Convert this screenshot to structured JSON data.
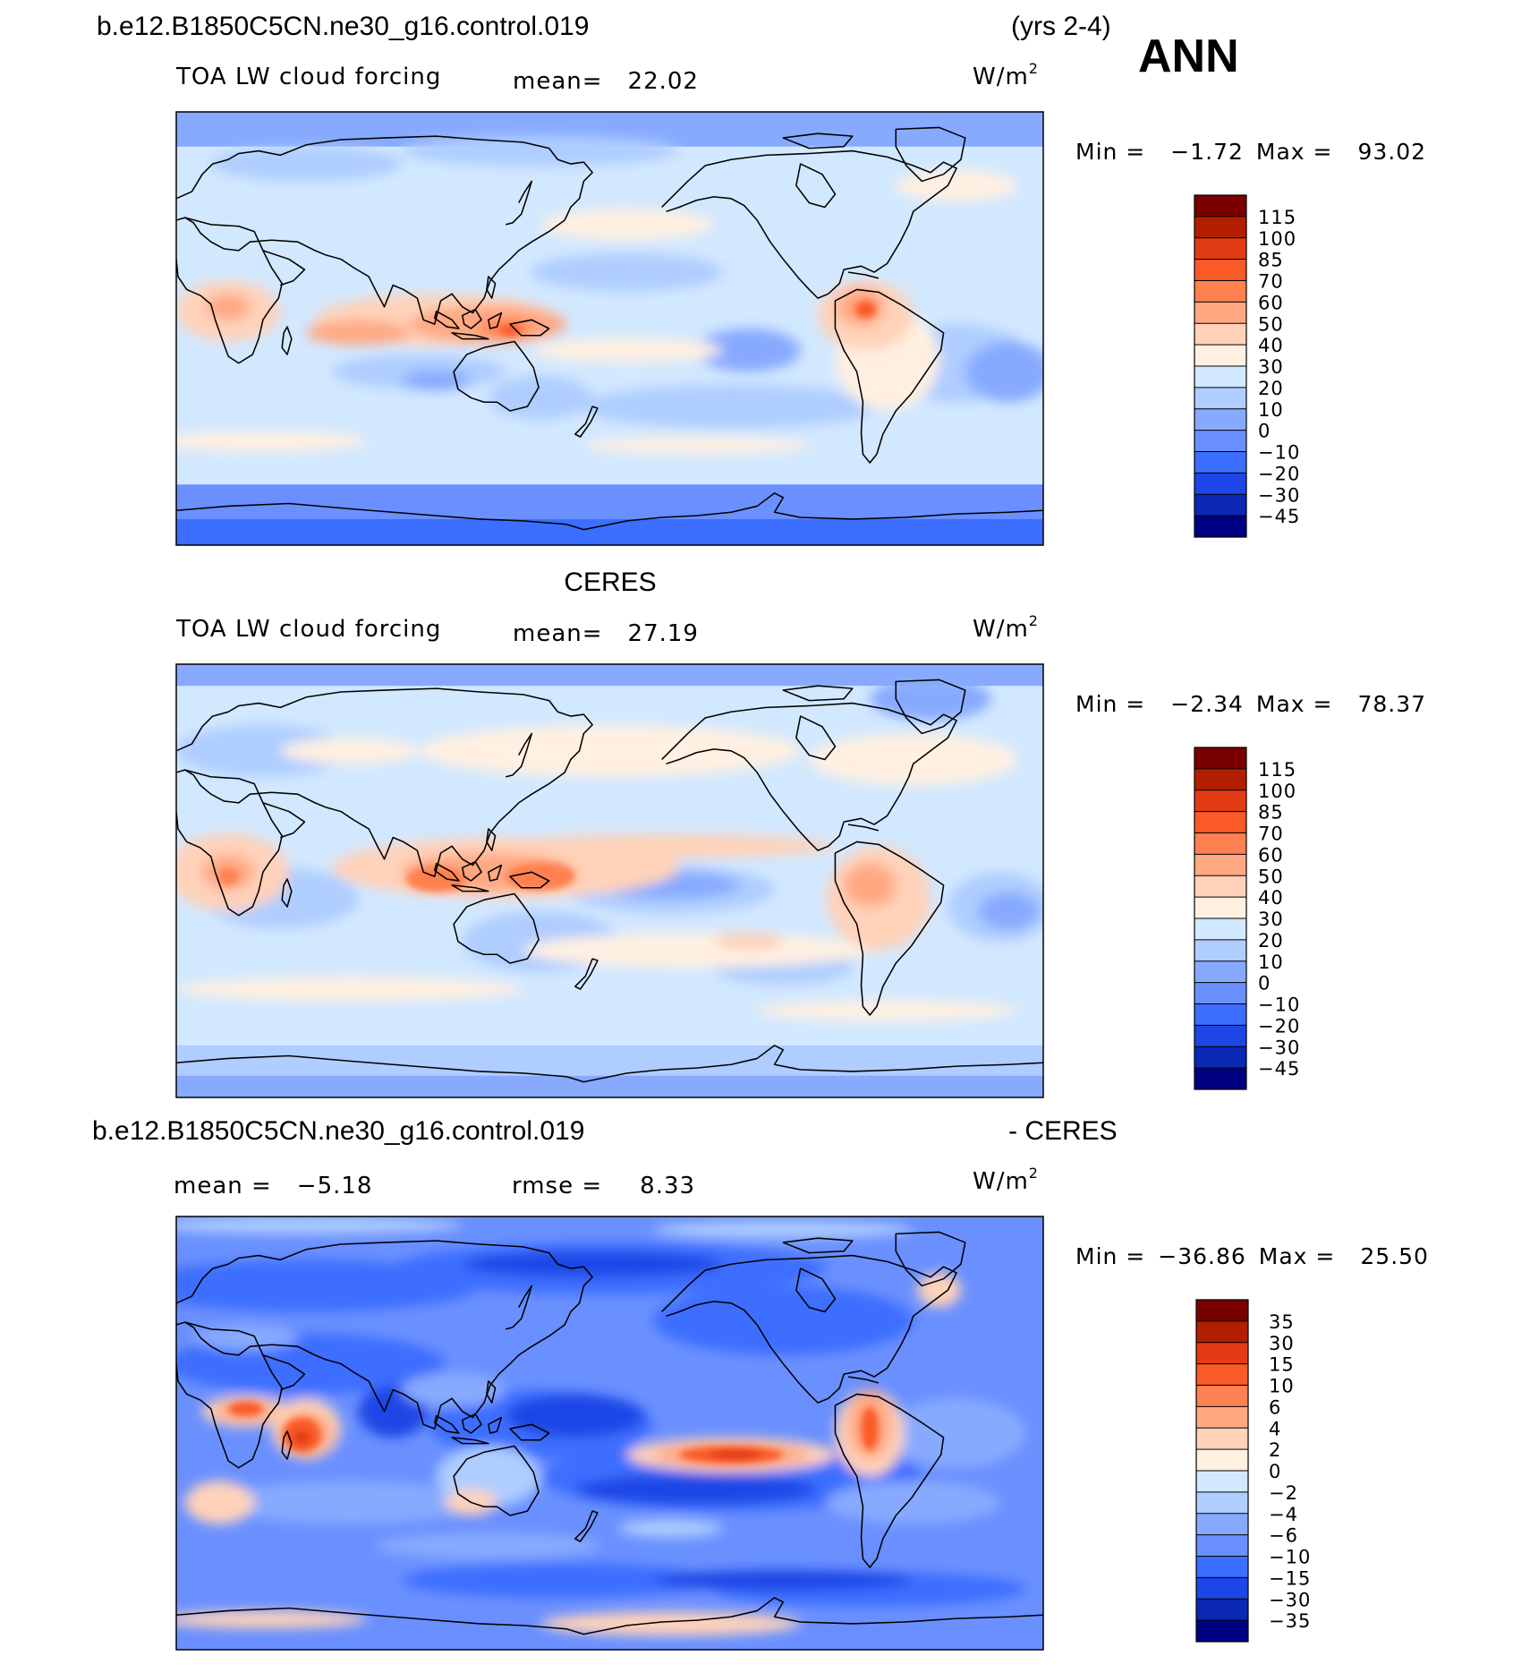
{
  "header": {
    "case_name": "b.e12.B1850C5CN.ne30_g16.control.019",
    "years": "(yrs 2-4)",
    "season": "ANN"
  },
  "panels": [
    {
      "id": "model",
      "title": "",
      "variable": "TOA LW cloud forcing",
      "mean_label": "mean=",
      "mean_value": "22.02",
      "units_base": "W/m",
      "units_exp": "2",
      "min_label": "Min =",
      "min_value": "−1.72",
      "max_label": "Max =",
      "max_value": "93.02",
      "colorbar_labels": [
        "115",
        "100",
        "85",
        "70",
        "60",
        "50",
        "40",
        "30",
        "20",
        "10",
        "0",
        "−10",
        "−20",
        "−30",
        "−45"
      ],
      "colorbar_colors": [
        "#7a0000",
        "#b41e00",
        "#e23c14",
        "#fa5a28",
        "#ff8050",
        "#ffa882",
        "#ffd2b9",
        "#fff0e1",
        "#d2e8ff",
        "#afcdff",
        "#87aaff",
        "#6a90ff",
        "#3c6eff",
        "#1e46e6",
        "#0a28b4",
        "#000082"
      ]
    },
    {
      "id": "obs",
      "title": "CERES",
      "variable": "TOA LW cloud forcing",
      "mean_label": "mean=",
      "mean_value": "27.19",
      "units_base": "W/m",
      "units_exp": "2",
      "min_label": "Min =",
      "min_value": "−2.34",
      "max_label": "Max =",
      "max_value": "78.37",
      "colorbar_labels": [
        "115",
        "100",
        "85",
        "70",
        "60",
        "50",
        "40",
        "30",
        "20",
        "10",
        "0",
        "−10",
        "−20",
        "−30",
        "−45"
      ],
      "colorbar_colors": [
        "#7a0000",
        "#b41e00",
        "#e23c14",
        "#fa5a28",
        "#ff8050",
        "#ffa882",
        "#ffd2b9",
        "#fff0e1",
        "#d2e8ff",
        "#afcdff",
        "#87aaff",
        "#6a90ff",
        "#3c6eff",
        "#1e46e6",
        "#0a28b4",
        "#000082"
      ]
    },
    {
      "id": "diff",
      "title_left": "b.e12.B1850C5CN.ne30_g16.control.019",
      "title_right": "- CERES",
      "mean_label": "mean =",
      "mean_value": "−5.18",
      "rmse_label": "rmse =",
      "rmse_value": "8.33",
      "units_base": "W/m",
      "units_exp": "2",
      "min_label": "Min =",
      "min_value": "−36.86",
      "max_label": "Max =",
      "max_value": "25.50",
      "colorbar_labels": [
        "35",
        "30",
        "15",
        "10",
        "6",
        "4",
        "2",
        "0",
        "−2",
        "−4",
        "−6",
        "−10",
        "−15",
        "−30",
        "−35"
      ],
      "colorbar_colors": [
        "#7a0000",
        "#b41e00",
        "#e23c14",
        "#fa5a28",
        "#ff8050",
        "#ffa882",
        "#ffd2b9",
        "#fff0e1",
        "#d2e8ff",
        "#afcdff",
        "#87aaff",
        "#6a90ff",
        "#3c6eff",
        "#1e46e6",
        "#0a28b4",
        "#000082"
      ]
    }
  ]
}
